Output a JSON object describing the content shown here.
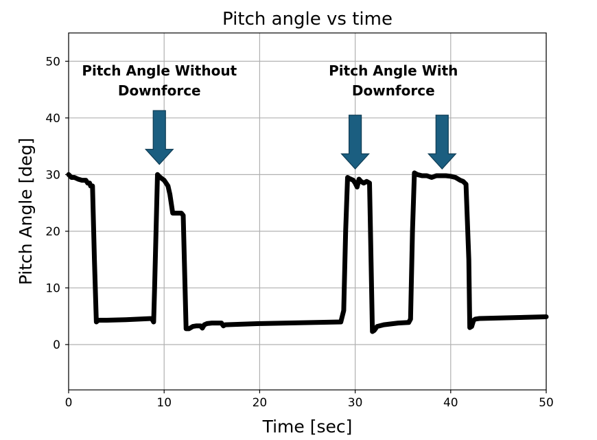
{
  "chart_data": {
    "type": "line",
    "title": "Pitch angle vs time",
    "xlabel": "Time [sec]",
    "ylabel": "Pitch Angle [deg]",
    "xlim": [
      0,
      50
    ],
    "ylim": [
      -8,
      55
    ],
    "xticks": [
      0,
      10,
      20,
      30,
      40,
      50
    ],
    "yticks": [
      0,
      10,
      20,
      30,
      40,
      50
    ],
    "grid": true,
    "series_color": "#000000",
    "arrow_color": "#1b5e80",
    "series": [
      {
        "x": [
          0,
          0.3,
          0.6,
          1.0,
          1.4,
          1.8,
          2.0,
          2.2,
          2.3,
          2.5,
          2.7,
          2.9,
          3.1,
          4,
          6,
          8.7,
          8.9,
          9.0,
          9.3,
          9.6,
          10.0,
          10.2,
          10.4,
          10.6,
          10.9,
          11.2,
          11.6,
          11.8,
          12.0,
          12.3,
          12.6,
          13.0,
          13.4,
          13.8,
          14.0,
          14.2,
          14.5,
          15.0,
          15.5,
          16.0,
          16.2,
          16.4,
          20,
          28.5,
          28.8,
          29.0,
          29.2,
          29.4,
          29.8,
          30.0,
          30.2,
          30.4,
          30.6,
          30.9,
          31.2,
          31.5,
          31.6,
          31.8,
          32.0,
          32.3,
          33.0,
          34.5,
          35.6,
          35.8,
          36.0,
          36.2,
          36.5,
          37.0,
          37.5,
          38.0,
          38.5,
          39.0,
          39.5,
          40.0,
          40.5,
          41.0,
          41.3,
          41.6,
          41.9,
          42.0,
          42.2,
          42.4,
          42.6,
          43.0,
          50
        ],
        "y": [
          30,
          29.5,
          29.5,
          29.2,
          29,
          29,
          28.5,
          28.5,
          28.0,
          28.0,
          15,
          4.0,
          4.3,
          4.3,
          4.4,
          4.6,
          4.0,
          10,
          30,
          29.5,
          29,
          28.5,
          28.0,
          26.5,
          23.2,
          23.2,
          23.2,
          23.2,
          22.8,
          2.8,
          2.8,
          3.2,
          3.3,
          3.3,
          2.9,
          3.5,
          3.7,
          3.8,
          3.8,
          3.8,
          3.3,
          3.5,
          3.7,
          4.0,
          6,
          20,
          29.5,
          29.3,
          29,
          28.5,
          27.8,
          29.2,
          28.8,
          28.5,
          28.8,
          28.5,
          20,
          2.3,
          2.5,
          3.2,
          3.5,
          3.8,
          3.9,
          4.5,
          20,
          30.3,
          30,
          29.8,
          29.8,
          29.5,
          29.8,
          29.8,
          29.8,
          29.7,
          29.5,
          29,
          28.8,
          28.3,
          15,
          3.0,
          3.2,
          4.3,
          4.5,
          4.6,
          4.9
        ]
      }
    ],
    "annotations": [
      {
        "lines": [
          "Pitch Angle Without",
          "Downforce"
        ],
        "label_x": 9.5,
        "label_y": 47.5
      },
      {
        "lines": [
          "Pitch Angle With",
          "Downforce"
        ],
        "label_x": 34.0,
        "label_y": 47.5
      }
    ],
    "arrows": [
      {
        "x": 9.5,
        "y_start": 41.3,
        "y_end": 31.8
      },
      {
        "x": 30.0,
        "y_start": 40.5,
        "y_end": 31.0
      },
      {
        "x": 39.1,
        "y_start": 40.5,
        "y_end": 31.0
      }
    ]
  }
}
